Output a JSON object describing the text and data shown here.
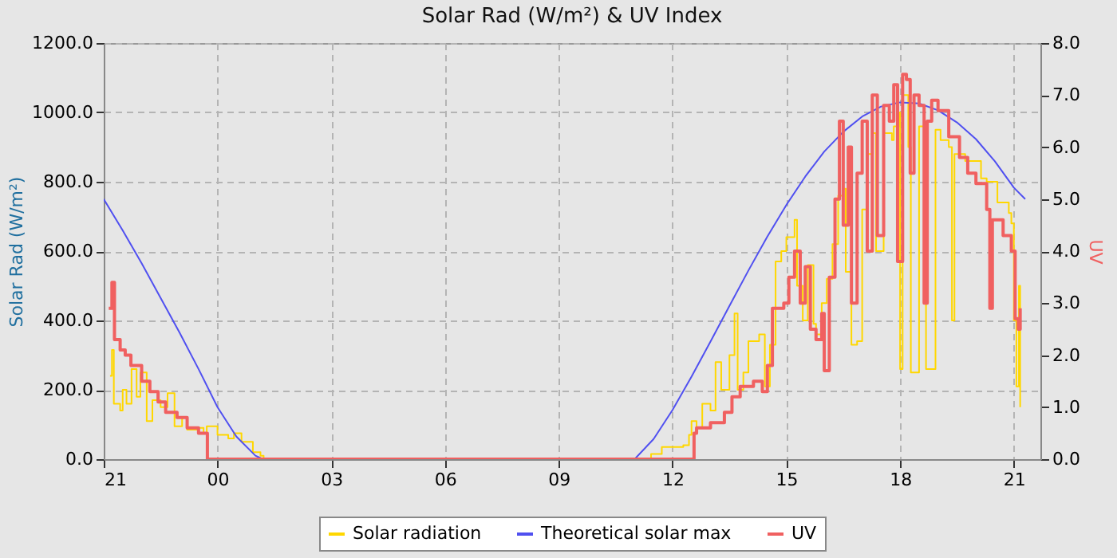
{
  "chart_data": {
    "type": "line",
    "title": "Solar Rad (W/m²) &  UV Index",
    "ylabel": "Solar Rad (W/m²)",
    "y2label": "UV",
    "xlim": [
      "2000-01-01T21:00",
      "2000-01-02T21:42"
    ],
    "xticks": [
      {
        "value": "2000-01-01T21:00",
        "label": "21"
      },
      {
        "value": "2000-01-02T00:00",
        "label": "00"
      },
      {
        "value": "2000-01-02T03:00",
        "label": "03"
      },
      {
        "value": "2000-01-02T06:00",
        "label": "06"
      },
      {
        "value": "2000-01-02T09:00",
        "label": "09"
      },
      {
        "value": "2000-01-02T12:00",
        "label": "12"
      },
      {
        "value": "2000-01-02T15:00",
        "label": "15"
      },
      {
        "value": "2000-01-02T18:00",
        "label": "18"
      },
      {
        "value": "2000-01-02T21:00",
        "label": "21"
      }
    ],
    "ylim": [
      0,
      1200
    ],
    "yticks": [
      {
        "value": 0,
        "label": "0.0"
      },
      {
        "value": 200,
        "label": "200.0"
      },
      {
        "value": 400,
        "label": "400.0"
      },
      {
        "value": 600,
        "label": "600.0"
      },
      {
        "value": 800,
        "label": "800.0"
      },
      {
        "value": 1000,
        "label": "1000.0"
      },
      {
        "value": 1200,
        "label": "1200.0"
      }
    ],
    "y2lim": [
      0,
      8
    ],
    "y2ticks": [
      {
        "value": 0,
        "label": "0.0"
      },
      {
        "value": 1,
        "label": "1.0"
      },
      {
        "value": 2,
        "label": "2.0"
      },
      {
        "value": 3,
        "label": "3.0"
      },
      {
        "value": 4,
        "label": "4.0"
      },
      {
        "value": 5,
        "label": "5.0"
      },
      {
        "value": 6,
        "label": "6.0"
      },
      {
        "value": 7,
        "label": "7.0"
      },
      {
        "value": 8,
        "label": "8.0"
      }
    ],
    "grid": true,
    "legend": "bottom",
    "series": [
      {
        "name": "Solar radiation",
        "color": "#ffd700",
        "type": "step",
        "x": [
          "2000-01-01T21:10",
          "2000-01-01T21:13",
          "2000-01-01T21:16",
          "2000-01-01T21:26",
          "2000-01-01T21:30",
          "2000-01-01T21:36",
          "2000-01-01T21:44",
          "2000-01-01T21:52",
          "2000-01-01T21:58",
          "2000-01-01T22:08",
          "2000-01-01T22:17",
          "2000-01-01T22:30",
          "2000-01-01T22:41",
          "2000-01-01T22:52",
          "2000-01-01T23:04",
          "2000-01-01T23:12",
          "2000-01-01T23:30",
          "2000-01-01T23:38",
          "2000-01-01T23:43",
          "2000-01-02T00:00",
          "2000-01-02T00:17",
          "2000-01-02T00:26",
          "2000-01-02T00:38",
          "2000-01-02T00:56",
          "2000-01-02T01:08",
          "2000-01-02T01:13",
          "2000-01-02T11:00",
          "2000-01-02T11:26",
          "2000-01-02T11:43",
          "2000-01-02T12:17",
          "2000-01-02T12:26",
          "2000-01-02T12:30",
          "2000-01-02T12:38",
          "2000-01-02T12:47",
          "2000-01-02T13:00",
          "2000-01-02T13:08",
          "2000-01-02T13:17",
          "2000-01-02T13:30",
          "2000-01-02T13:38",
          "2000-01-02T13:43",
          "2000-01-02T13:52",
          "2000-01-02T14:00",
          "2000-01-02T14:17",
          "2000-01-02T14:26",
          "2000-01-02T14:34",
          "2000-01-02T14:43",
          "2000-01-02T14:52",
          "2000-01-02T15:00",
          "2000-01-02T15:13",
          "2000-01-02T15:17",
          "2000-01-02T15:26",
          "2000-01-02T15:34",
          "2000-01-02T15:43",
          "2000-01-02T15:47",
          "2000-01-02T15:56",
          "2000-01-02T16:04",
          "2000-01-02T16:13",
          "2000-01-02T16:22",
          "2000-01-02T16:30",
          "2000-01-02T16:34",
          "2000-01-02T16:43",
          "2000-01-02T16:52",
          "2000-01-02T17:00",
          "2000-01-02T17:08",
          "2000-01-02T17:17",
          "2000-01-02T17:22",
          "2000-01-02T17:34",
          "2000-01-02T17:47",
          "2000-01-02T17:50",
          "2000-01-02T17:58",
          "2000-01-02T18:00",
          "2000-01-02T18:04",
          "2000-01-02T18:13",
          "2000-01-02T18:17",
          "2000-01-02T18:22",
          "2000-01-02T18:30",
          "2000-01-02T18:38",
          "2000-01-02T18:41",
          "2000-01-02T18:47",
          "2000-01-02T18:56",
          "2000-01-02T19:04",
          "2000-01-02T19:17",
          "2000-01-02T19:22",
          "2000-01-02T19:26",
          "2000-01-02T19:43",
          "2000-01-02T20:08",
          "2000-01-02T20:17",
          "2000-01-02T20:34",
          "2000-01-02T20:52",
          "2000-01-02T20:56",
          "2000-01-02T21:00",
          "2000-01-02T21:04",
          "2000-01-02T21:08",
          "2000-01-02T21:10"
        ],
        "values": [
          240,
          315,
          160,
          140,
          200,
          160,
          260,
          180,
          250,
          110,
          170,
          150,
          190,
          95,
          120,
          85,
          90,
          75,
          95,
          70,
          60,
          75,
          50,
          20,
          10,
          0,
          0,
          15,
          35,
          40,
          70,
          110,
          90,
          160,
          140,
          280,
          200,
          300,
          420,
          200,
          250,
          340,
          360,
          210,
          330,
          570,
          600,
          640,
          690,
          500,
          400,
          560,
          390,
          360,
          450,
          520,
          620,
          760,
          780,
          540,
          330,
          340,
          720,
          880,
          940,
          600,
          940,
          920,
          960,
          1000,
          260,
          1050,
          900,
          250,
          250,
          960,
          950,
          260,
          260,
          950,
          920,
          900,
          400,
          880,
          860,
          810,
          800,
          740,
          710,
          680,
          400,
          210,
          500,
          150
        ]
      },
      {
        "name": "Theoretical solar max",
        "color": "#5050f0",
        "x": [
          "2000-01-01T21:00",
          "2000-01-01T21:30",
          "2000-01-01T22:00",
          "2000-01-01T22:30",
          "2000-01-01T23:00",
          "2000-01-01T23:30",
          "2000-01-02T00:00",
          "2000-01-02T00:30",
          "2000-01-02T01:00",
          "2000-01-02T01:12",
          "2000-01-02T11:00",
          "2000-01-02T11:30",
          "2000-01-02T12:00",
          "2000-01-02T12:30",
          "2000-01-02T13:00",
          "2000-01-02T13:30",
          "2000-01-02T14:00",
          "2000-01-02T14:30",
          "2000-01-02T15:00",
          "2000-01-02T15:30",
          "2000-01-02T16:00",
          "2000-01-02T16:30",
          "2000-01-02T17:00",
          "2000-01-02T17:30",
          "2000-01-02T18:00",
          "2000-01-02T18:30",
          "2000-01-02T19:00",
          "2000-01-02T19:30",
          "2000-01-02T20:00",
          "2000-01-02T20:30",
          "2000-01-02T21:00",
          "2000-01-02T21:18"
        ],
        "values": [
          750,
          660,
          565,
          465,
          365,
          260,
          150,
          65,
          10,
          0,
          0,
          58,
          142,
          238,
          339,
          442,
          544,
          642,
          733,
          815,
          887,
          944,
          988,
          1017,
          1029,
          1026,
          1006,
          971,
          923,
          859,
          783,
          750
        ]
      },
      {
        "name": "UV",
        "color": "#f06060",
        "type": "step",
        "axis": "y2",
        "x": [
          "2000-01-01T21:08",
          "2000-01-01T21:13",
          "2000-01-01T21:17",
          "2000-01-01T21:26",
          "2000-01-01T21:34",
          "2000-01-01T21:43",
          "2000-01-01T21:52",
          "2000-01-01T22:00",
          "2000-01-01T22:13",
          "2000-01-01T22:26",
          "2000-01-01T22:38",
          "2000-01-01T22:56",
          "2000-01-01T23:12",
          "2000-01-01T23:30",
          "2000-01-01T23:43",
          "2000-01-01T23:44",
          "2000-01-02T12:34",
          "2000-01-02T12:38",
          "2000-01-02T13:00",
          "2000-01-02T13:22",
          "2000-01-02T13:34",
          "2000-01-02T13:47",
          "2000-01-02T14:08",
          "2000-01-02T14:22",
          "2000-01-02T14:30",
          "2000-01-02T14:38",
          "2000-01-02T14:56",
          "2000-01-02T15:04",
          "2000-01-02T15:13",
          "2000-01-02T15:22",
          "2000-01-02T15:30",
          "2000-01-02T15:38",
          "2000-01-02T15:47",
          "2000-01-02T15:56",
          "2000-01-02T16:00",
          "2000-01-02T16:08",
          "2000-01-02T16:17",
          "2000-01-02T16:24",
          "2000-01-02T16:30",
          "2000-01-02T16:38",
          "2000-01-02T16:43",
          "2000-01-02T16:52",
          "2000-01-02T17:00",
          "2000-01-02T17:08",
          "2000-01-02T17:16",
          "2000-01-02T17:24",
          "2000-01-02T17:34",
          "2000-01-02T17:43",
          "2000-01-02T17:50",
          "2000-01-02T17:56",
          "2000-01-02T18:04",
          "2000-01-02T18:10",
          "2000-01-02T18:16",
          "2000-01-02T18:22",
          "2000-01-02T18:30",
          "2000-01-02T18:38",
          "2000-01-02T18:43",
          "2000-01-02T18:50",
          "2000-01-02T19:00",
          "2000-01-02T19:17",
          "2000-01-02T19:34",
          "2000-01-02T19:47",
          "2000-01-02T20:00",
          "2000-01-02T20:17",
          "2000-01-02T20:22",
          "2000-01-02T20:26",
          "2000-01-02T20:43",
          "2000-01-02T20:56",
          "2000-01-02T21:02",
          "2000-01-02T21:07",
          "2000-01-02T21:10"
        ],
        "values": [
          2.9,
          3.4,
          2.3,
          2.1,
          2.0,
          1.8,
          1.8,
          1.5,
          1.3,
          1.1,
          0.9,
          0.8,
          0.6,
          0.5,
          0.5,
          0,
          0.5,
          0.6,
          0.7,
          0.9,
          1.2,
          1.4,
          1.5,
          1.3,
          1.8,
          2.9,
          3.0,
          3.5,
          4.0,
          3.0,
          3.7,
          2.5,
          2.3,
          2.8,
          1.7,
          3.5,
          5.0,
          6.5,
          4.5,
          6.0,
          3.0,
          5.5,
          6.5,
          4.0,
          7.0,
          4.3,
          6.8,
          6.5,
          7.2,
          3.8,
          7.4,
          7.3,
          5.5,
          7.0,
          6.8,
          3.0,
          6.5,
          6.9,
          6.7,
          6.2,
          5.8,
          5.5,
          5.3,
          4.8,
          2.9,
          4.6,
          4.3,
          4.0,
          2.7,
          2.5,
          2.9
        ]
      }
    ]
  }
}
